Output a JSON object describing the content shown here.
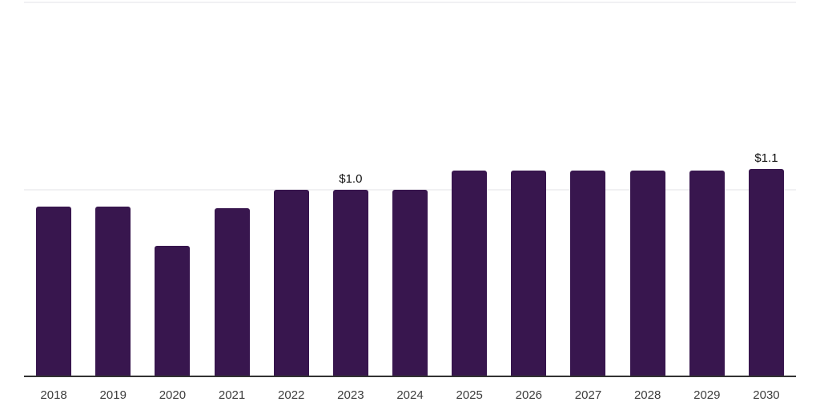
{
  "chart_data": {
    "type": "bar",
    "title": "",
    "xlabel": "",
    "ylabel": "",
    "categories": [
      "2018",
      "2019",
      "2020",
      "2021",
      "2022",
      "2023",
      "2024",
      "2025",
      "2026",
      "2027",
      "2028",
      "2029",
      "2030"
    ],
    "values": [
      0.91,
      0.91,
      0.7,
      0.9,
      1.0,
      1.0,
      1.0,
      1.1,
      1.1,
      1.1,
      1.1,
      1.1,
      1.11
    ],
    "bar_labels": [
      "",
      "",
      "",
      "",
      "",
      "$1.0",
      "",
      "",
      "",
      "",
      "",
      "",
      "$1.1"
    ],
    "ylim": [
      0,
      2.0
    ],
    "gridline_values": [
      1.0,
      2.0
    ],
    "grid": "horizontal-only",
    "legend": "none",
    "y_axis_tick_labels_visible": false
  },
  "styles": {
    "bar_color": "#38164e",
    "axis_line_color": "#333333",
    "gridline_color": "#f1f1f3",
    "value_label_color": "#111111",
    "tick_label_color": "#3d3d3d",
    "background_color": "#ffffff"
  }
}
